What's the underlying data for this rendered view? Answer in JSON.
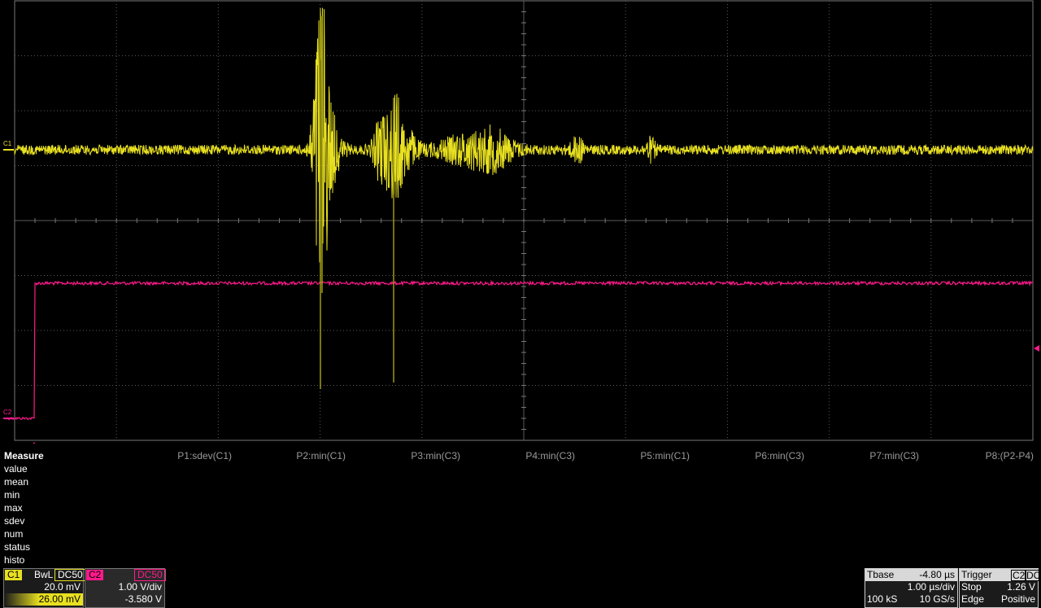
{
  "markers": {
    "c1_label": "C1",
    "c2_label": "C2"
  },
  "colors": {
    "ch1": "#e8e020",
    "ch1_dim": "#9c9a10",
    "ch2": "#ff1a8c",
    "grid": "#5a5a5a"
  },
  "measure": {
    "title": "Measure",
    "rows": [
      "value",
      "mean",
      "min",
      "max",
      "sdev",
      "num",
      "status",
      "histo"
    ],
    "params": [
      "P1:sdev(C1)",
      "P2:min(C1)",
      "P3:min(C3)",
      "P4:min(C3)",
      "P5:min(C1)",
      "P6:min(C3)",
      "P7:min(C3)",
      "P8:(P2-P4)"
    ]
  },
  "ch1": {
    "label": "C1",
    "coupling1": "BwL",
    "coupling2": "DC50",
    "scale": "20.0 mV",
    "offset": "26.00 mV"
  },
  "ch2": {
    "label": "C2",
    "coupling": "DC50",
    "scale": "1.00 V/div",
    "offset": "-3.580 V"
  },
  "timebase": {
    "label": "Tbase",
    "delay": "-4.80 µs",
    "scale": "1.00 µs/div",
    "samples": "100 kS",
    "rate": "10 GS/s"
  },
  "trigger": {
    "label": "Trigger",
    "source": "C2",
    "coupling": "DC",
    "mode": "Stop",
    "level": "1.26 V",
    "type": "Edge",
    "slope": "Positive"
  }
}
